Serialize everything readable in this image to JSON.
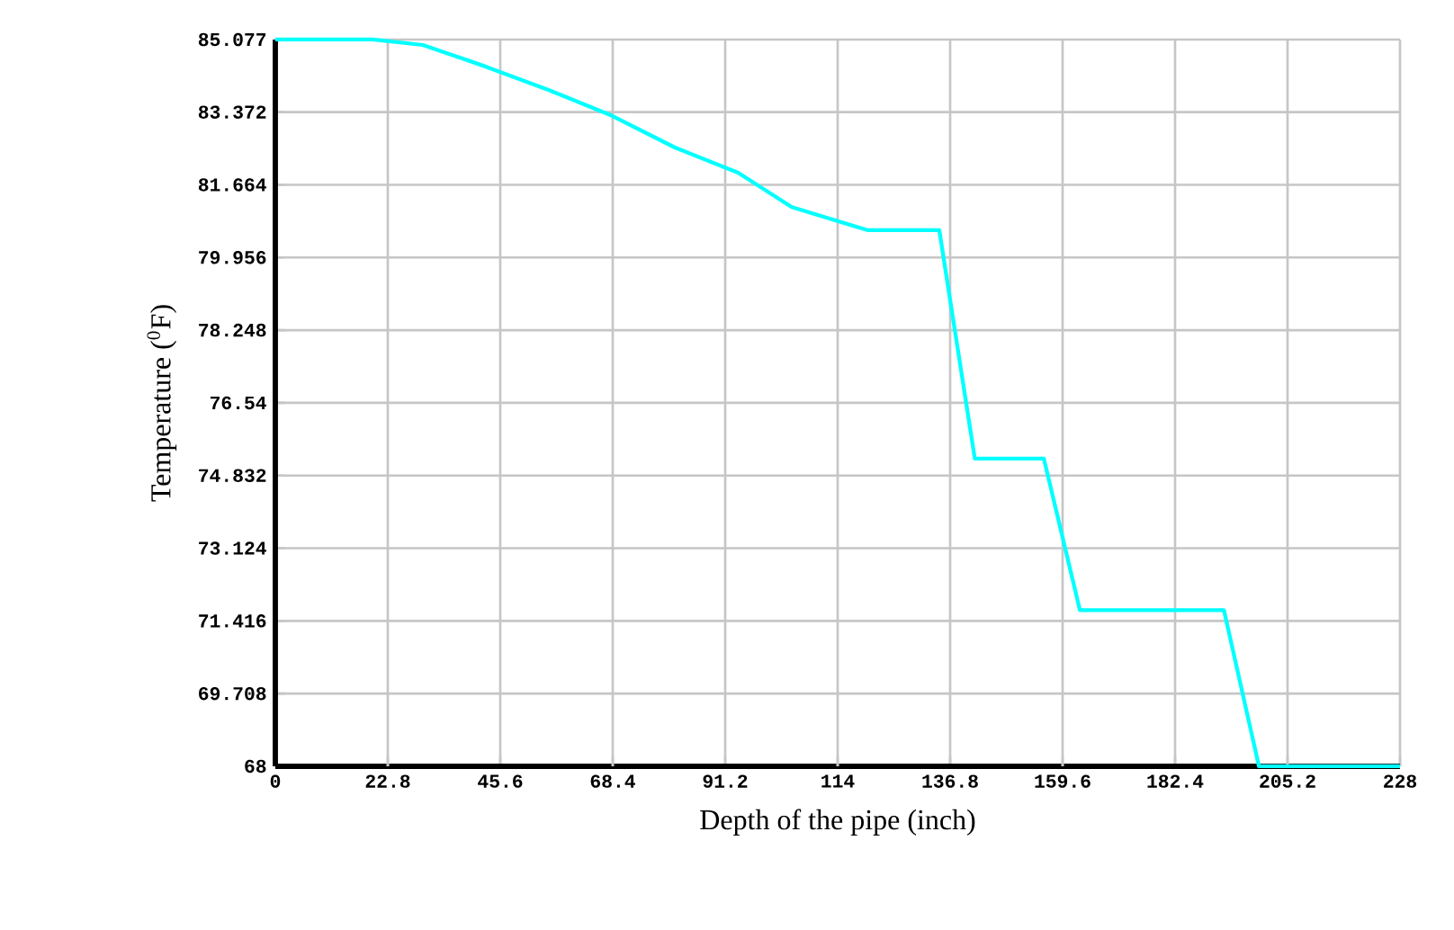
{
  "chart_data": {
    "type": "line",
    "xlabel": "Depth of the pipe (inch)",
    "ylabel": "Temperature ($^{0}$F)",
    "x": [
      0,
      19.7,
      29.9,
      42.7,
      55.5,
      68.2,
      81,
      93.8,
      104.7,
      120,
      134.6,
      141.8,
      155.8,
      163.1,
      192.3,
      199.4,
      228
    ],
    "values": [
      85.077,
      85.077,
      84.95,
      84.44,
      83.89,
      83.29,
      82.54,
      81.95,
      81.14,
      80.6,
      80.6,
      75.23,
      75.23,
      71.67,
      71.67,
      68,
      68
    ],
    "color": "#00ffff",
    "xlim": [
      0,
      228
    ],
    "ylim": [
      68,
      85.077
    ],
    "xticks": [
      0,
      22.8,
      45.6,
      68.4,
      91.2,
      114,
      136.8,
      159.6,
      182.4,
      205.2,
      228
    ],
    "yticks": [
      68,
      69.708,
      71.416,
      73.124,
      74.832,
      76.54,
      78.248,
      79.956,
      81.664,
      83.372,
      85.077
    ],
    "grid": true,
    "marker": "none",
    "line_style": "solid"
  }
}
